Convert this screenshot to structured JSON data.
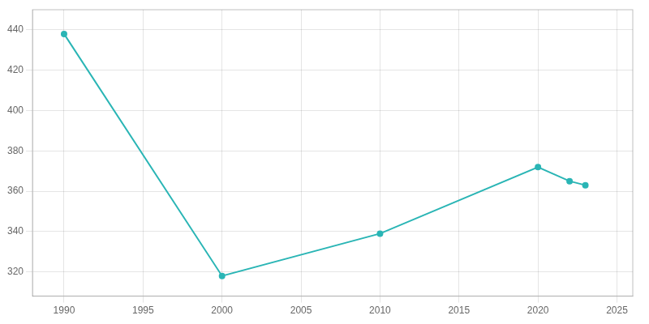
{
  "chart_data": {
    "type": "line",
    "x": [
      1990,
      2000,
      2010,
      2020,
      2022,
      2023
    ],
    "values": [
      438,
      318,
      339,
      372,
      365,
      363
    ],
    "color": "#2ab5b5",
    "marker": "o",
    "xlim": [
      1988,
      2026
    ],
    "ylim": [
      308,
      450
    ],
    "xticks": [
      1990,
      1995,
      2000,
      2005,
      2010,
      2015,
      2020,
      2025
    ],
    "yticks": [
      320,
      340,
      360,
      380,
      400,
      420,
      440
    ],
    "grid": true
  }
}
